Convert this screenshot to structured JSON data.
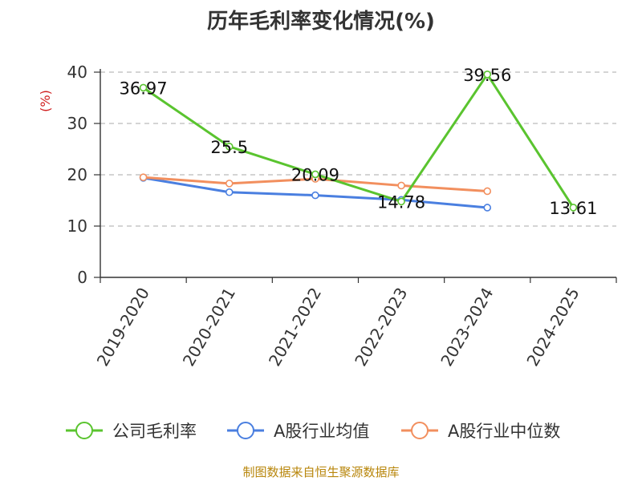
{
  "chart_data": {
    "type": "line",
    "title": "历年毛利率变化情况(%)",
    "ylabel": "(%)",
    "ylim": [
      0,
      40
    ],
    "yticks": [
      0,
      10,
      20,
      30,
      40
    ],
    "categories": [
      "2019-2020",
      "2020-2021",
      "2021-2022",
      "2022-2023",
      "2023-2024",
      "2024-2025"
    ],
    "grid": true,
    "legend_position": "bottom",
    "series": [
      {
        "name": "公司毛利率",
        "color": "#5ac42f",
        "values": [
          36.97,
          25.5,
          20.09,
          14.78,
          39.56,
          13.61
        ],
        "labels": [
          "36.97",
          "25.5",
          "20.09",
          "14.78",
          "39.56",
          "13.61"
        ]
      },
      {
        "name": "A股行业均值",
        "color": "#4a7fe0",
        "values": [
          19.4,
          16.6,
          16.0,
          15.1,
          13.6,
          null
        ]
      },
      {
        "name": "A股行业中位数",
        "color": "#f28f5e",
        "values": [
          19.5,
          18.3,
          19.2,
          17.9,
          16.8,
          null
        ]
      }
    ]
  },
  "footer": {
    "source": "制图数据来自恒生聚源数据库"
  }
}
